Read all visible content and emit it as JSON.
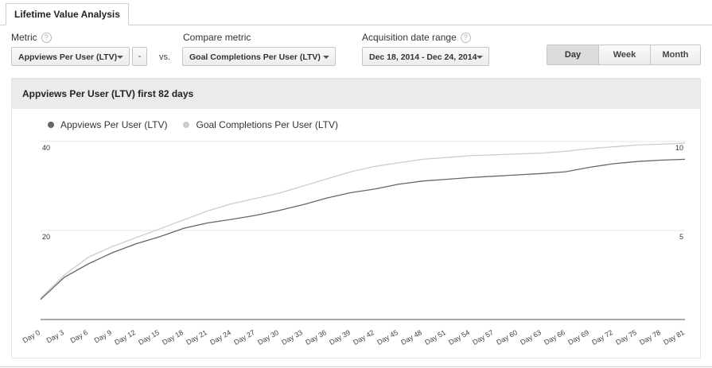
{
  "tab": {
    "label": "Lifetime Value Analysis"
  },
  "controls": {
    "metric_label": "Metric",
    "metric_value": "Appviews Per User (LTV)",
    "remove_label": "-",
    "vs_label": "vs.",
    "compare_label": "Compare metric",
    "compare_value": "Goal Completions Per User (LTV)",
    "date_label": "Acquisition date range",
    "date_value": "Dec 18, 2014 - Dec 24, 2014",
    "help_glyph": "?",
    "periods": [
      "Day",
      "Week",
      "Month"
    ],
    "selected_period": "Day"
  },
  "panel": {
    "title": "Appviews Per User (LTV) first 82 days"
  },
  "colors": {
    "primary": "#666666",
    "secondary": "#cccccc",
    "grid": "#e5e5e5",
    "axis": "#555555"
  },
  "chart_data": {
    "type": "line",
    "x": [
      "Day 0",
      "Day 3",
      "Day 6",
      "Day 9",
      "Day 12",
      "Day 15",
      "Day 18",
      "Day 21",
      "Day 24",
      "Day 27",
      "Day 30",
      "Day 33",
      "Day 36",
      "Day 39",
      "Day 42",
      "Day 45",
      "Day 48",
      "Day 51",
      "Day 54",
      "Day 57",
      "Day 60",
      "Day 63",
      "Day 66",
      "Day 69",
      "Day 72",
      "Day 75",
      "Day 78",
      "Day 81"
    ],
    "series": [
      {
        "name": "Appviews Per User (LTV)",
        "axis": "left",
        "values": [
          4.5,
          9.5,
          12.5,
          15,
          17,
          18.6,
          20.5,
          21.7,
          22.5,
          23.4,
          24.5,
          25.8,
          27.3,
          28.5,
          29.3,
          30.4,
          31.1,
          31.5,
          31.9,
          32.2,
          32.5,
          32.8,
          33.2,
          34.2,
          35,
          35.5,
          35.8,
          36
        ]
      },
      {
        "name": "Goal Completions Per User (LTV)",
        "axis": "right",
        "values": [
          1.2,
          2.5,
          3.5,
          4.1,
          4.6,
          5.1,
          5.6,
          6.1,
          6.5,
          6.8,
          7.1,
          7.5,
          7.9,
          8.3,
          8.6,
          8.8,
          9.0,
          9.1,
          9.2,
          9.25,
          9.3,
          9.35,
          9.45,
          9.6,
          9.7,
          9.8,
          9.85,
          9.9
        ]
      }
    ],
    "y_left": {
      "ticks": [
        "20",
        "40"
      ],
      "ylim": [
        0,
        40
      ]
    },
    "y_right": {
      "ticks": [
        "5",
        "10"
      ],
      "ylim": [
        0,
        10
      ]
    },
    "grid": true,
    "legend_position": "top-left"
  }
}
